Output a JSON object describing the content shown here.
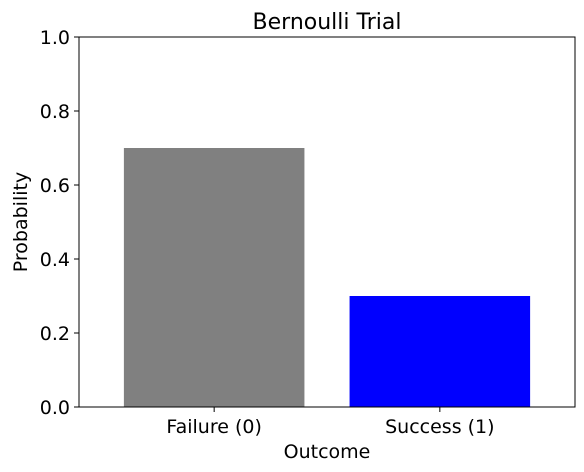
{
  "chart_data": {
    "type": "bar",
    "title": "Bernoulli Trial",
    "xlabel": "Outcome",
    "ylabel": "Probability",
    "categories": [
      "Failure (0)",
      "Success (1)"
    ],
    "values": [
      0.7,
      0.3
    ],
    "colors": [
      "#808080",
      "#0000ff"
    ],
    "ylim": [
      0,
      1.0
    ],
    "yticks": [
      "0.0",
      "0.2",
      "0.4",
      "0.6",
      "0.8",
      "1.0"
    ],
    "grid": false,
    "legend": "none"
  }
}
